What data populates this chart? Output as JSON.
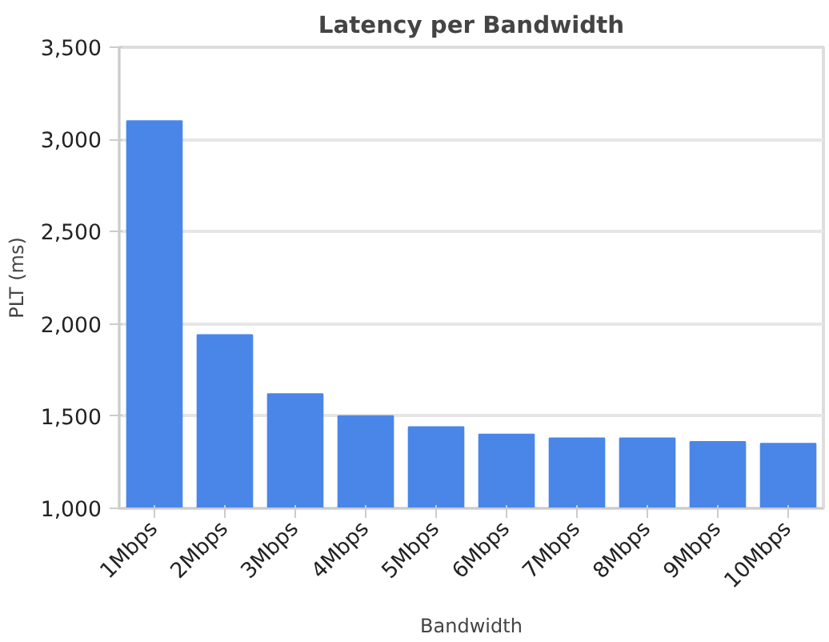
{
  "chart_data": {
    "type": "bar",
    "title": "Latency per Bandwidth",
    "xlabel": "Bandwidth",
    "ylabel": "PLT (ms)",
    "categories": [
      "1Mbps",
      "2Mbps",
      "3Mbps",
      "4Mbps",
      "5Mbps",
      "6Mbps",
      "7Mbps",
      "8Mbps",
      "9Mbps",
      "10Mbps"
    ],
    "values": [
      3100,
      1940,
      1620,
      1500,
      1440,
      1400,
      1380,
      1380,
      1360,
      1350
    ],
    "color": "#4a86e8",
    "ylim": [
      1000,
      3500
    ],
    "yticks": [
      {
        "value": 1000,
        "label": "1,000"
      },
      {
        "value": 1500,
        "label": "1,500"
      },
      {
        "value": 2000,
        "label": "2,000"
      },
      {
        "value": 2500,
        "label": "2,500"
      },
      {
        "value": 3000,
        "label": "3,000"
      },
      {
        "value": 3500,
        "label": "3,500"
      }
    ],
    "grid": "y"
  }
}
